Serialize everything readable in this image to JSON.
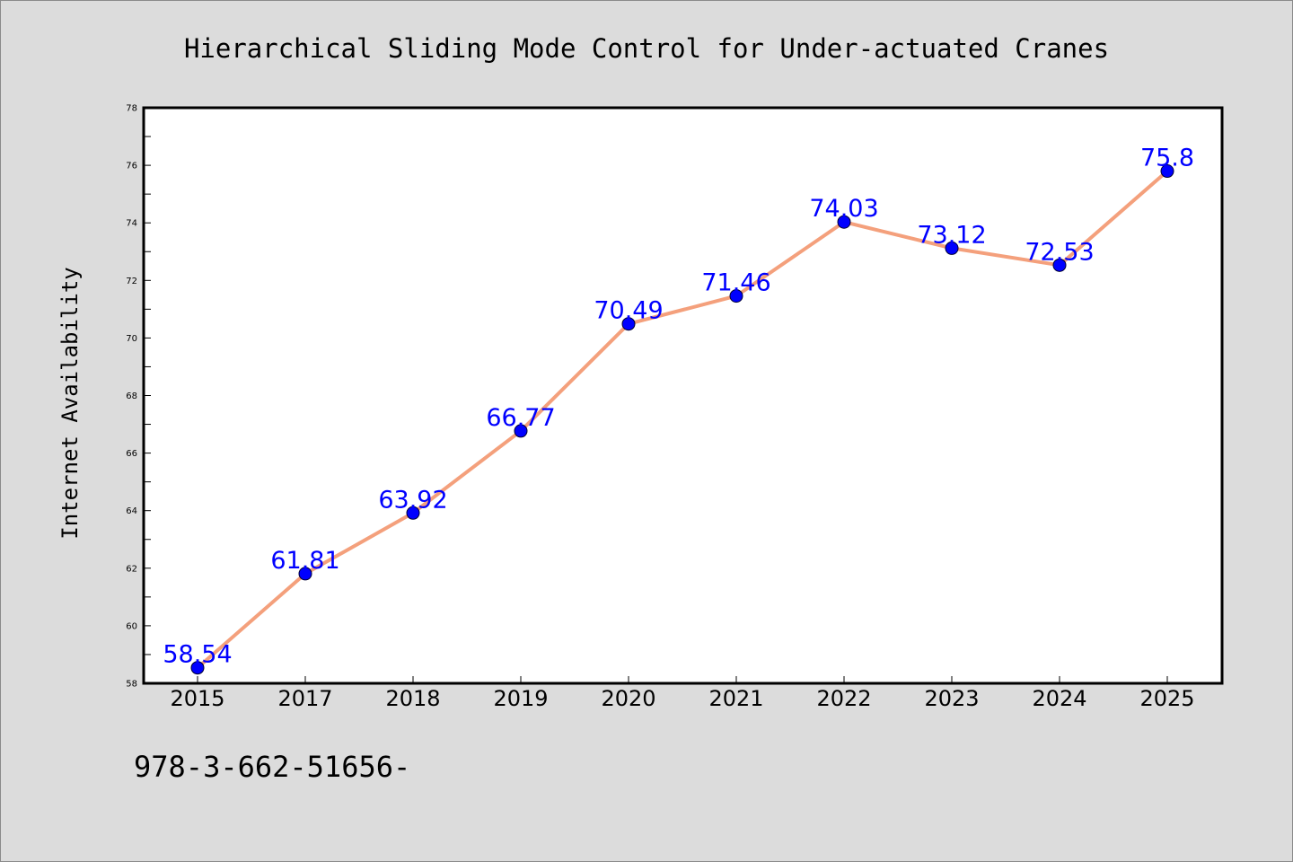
{
  "colors": {
    "background": "#dcdcdc",
    "plot_background": "#ffffff",
    "line": "#f4a07c",
    "marker": "#0000ff",
    "data_label": "#0000ff"
  },
  "footer": {
    "text": "978-3-662-51656-"
  },
  "chart_data": {
    "type": "line",
    "title": "Hierarchical Sliding Mode Control for Under-actuated Cranes",
    "xlabel": "",
    "ylabel": "Internet Availability",
    "categories": [
      "2015",
      "2017",
      "2018",
      "2019",
      "2020",
      "2021",
      "2022",
      "2023",
      "2024",
      "2025"
    ],
    "series": [
      {
        "values": [
          58.54,
          61.81,
          63.92,
          66.77,
          70.49,
          71.46,
          74.03,
          73.12,
          72.53,
          75.8
        ],
        "labels": [
          "58.54",
          "61.81",
          "63.92",
          "66.77",
          "70.49",
          "71.46",
          "74.03",
          "73.12",
          "72.53",
          "75.8"
        ]
      }
    ],
    "ylim": [
      58,
      78
    ],
    "yticks": [
      58,
      60,
      62,
      64,
      66,
      68,
      70,
      72,
      74,
      76,
      78
    ],
    "ytick_labels": [
      "58",
      "60",
      "62",
      "64",
      "66",
      "68",
      "70",
      "72",
      "74",
      "76",
      "78"
    ],
    "grid": false,
    "legend": "none",
    "marker": "circle",
    "data_labels": true
  }
}
